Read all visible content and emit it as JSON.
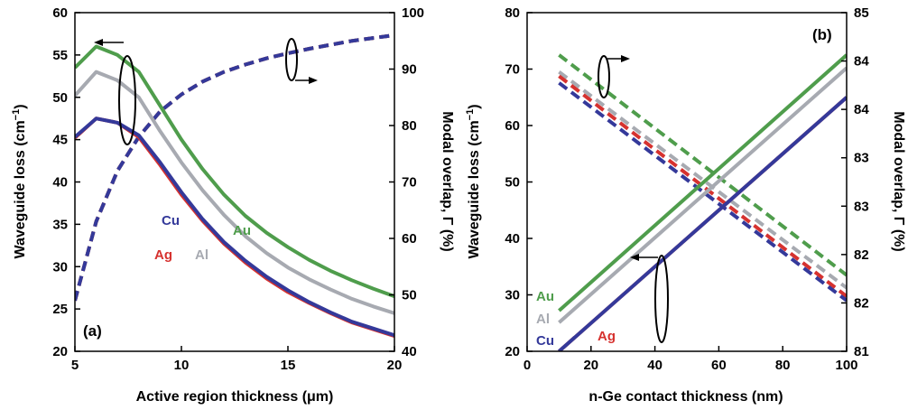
{
  "colors": {
    "Au": "#4f9d4c",
    "Al": "#a7aab1",
    "Ag": "#d6322f",
    "Cu": "#34399a"
  },
  "chart_data": [
    {
      "panel": "(a)",
      "type": "line",
      "xlabel": "Active region thickness (μm)",
      "ylabel_left_main": "Waveguide loss (cm",
      "ylabel_left_sup": "−1",
      "ylabel_left_end": ")",
      "ylabel_right": "Modal overlap, Γ (%)",
      "xlim": [
        5,
        20
      ],
      "ylim_left": [
        20,
        60
      ],
      "ylim_right": [
        40,
        100
      ],
      "x_ticks": [
        "5",
        "10",
        "15",
        "20"
      ],
      "y_left_ticks": [
        "20",
        "25",
        "30",
        "35",
        "40",
        "45",
        "50",
        "55",
        "60"
      ],
      "y_right_ticks": [
        "40",
        "50",
        "60",
        "70",
        "80",
        "90",
        "100"
      ],
      "series_labels": {
        "Au": "Au",
        "Al": "Al",
        "Cu": "Cu",
        "Ag": "Ag"
      },
      "x": [
        5,
        6,
        7,
        8,
        9,
        10,
        11,
        12,
        13,
        14,
        15,
        16,
        17,
        18,
        19,
        20
      ],
      "loss": {
        "Au": [
          53.5,
          56,
          55,
          53,
          49,
          45,
          41.5,
          38.5,
          36,
          34,
          32.3,
          30.8,
          29.5,
          28.4,
          27.4,
          26.5
        ],
        "Al": [
          50.2,
          53,
          52,
          50,
          46,
          42.3,
          39,
          36.1,
          33.6,
          31.6,
          29.9,
          28.5,
          27.3,
          26.2,
          25.3,
          24.5
        ],
        "Ag": [
          45.2,
          47.5,
          47,
          45.3,
          42,
          38.5,
          35.4,
          32.7,
          30.5,
          28.6,
          27,
          25.7,
          24.5,
          23.4,
          22.6,
          21.8
        ],
        "Cu": [
          45.3,
          47.5,
          47,
          45.5,
          42.3,
          38.8,
          35.6,
          32.9,
          30.7,
          28.8,
          27.2,
          25.8,
          24.6,
          23.5,
          22.7,
          21.9
        ]
      },
      "overlap": {
        "Au": [
          49,
          63,
          72,
          78,
          82.5,
          85.5,
          87.8,
          89.5,
          90.8,
          91.9,
          92.8,
          93.6,
          94.3,
          95,
          95.5,
          96
        ],
        "Al": [
          49,
          63,
          72,
          78,
          82.5,
          85.5,
          87.8,
          89.5,
          90.8,
          91.9,
          92.8,
          93.6,
          94.3,
          95,
          95.5,
          96
        ],
        "Ag": [
          49,
          63,
          72,
          78,
          82.5,
          85.5,
          87.8,
          89.5,
          90.8,
          91.9,
          92.8,
          93.6,
          94.3,
          95,
          95.5,
          96
        ],
        "Cu": [
          49,
          63,
          72,
          78,
          82.5,
          85.5,
          87.8,
          89.5,
          90.8,
          91.9,
          92.8,
          93.6,
          94.3,
          95,
          95.5,
          96
        ]
      }
    },
    {
      "panel": "(b)",
      "type": "line",
      "xlabel": "n-Ge contact thickness (nm)",
      "ylabel_left_main": "Waveguide loss (cm",
      "ylabel_left_sup": "−1",
      "ylabel_left_end": ")",
      "ylabel_right": "Modal overlap, Γ (%)",
      "xlim": [
        0,
        100
      ],
      "ylim_left": [
        20,
        80
      ],
      "ylim_right": [
        81,
        85
      ],
      "x_ticks": [
        "0",
        "20",
        "40",
        "60",
        "80",
        "100"
      ],
      "y_left_ticks": [
        "20",
        "30",
        "40",
        "50",
        "60",
        "70",
        "80"
      ],
      "y_right_ticks": [
        "81",
        "82",
        "82",
        "83",
        "83",
        "84",
        "84",
        "85"
      ],
      "series_labels": {
        "Au": "Au",
        "Al": "Al",
        "Cu": "Cu",
        "Ag": "Ag"
      },
      "x": [
        10,
        100
      ],
      "loss": {
        "Au": [
          27.2,
          72.5
        ],
        "Al": [
          25.1,
          70.2
        ],
        "Ag": [
          20,
          65
        ],
        "Cu": [
          20,
          65
        ]
      },
      "overlap": {
        "Au": [
          84.5,
          81.9
        ],
        "Al": [
          84.3,
          81.75
        ],
        "Ag": [
          84.25,
          81.65
        ],
        "Cu": [
          84.17,
          81.6
        ]
      }
    }
  ]
}
